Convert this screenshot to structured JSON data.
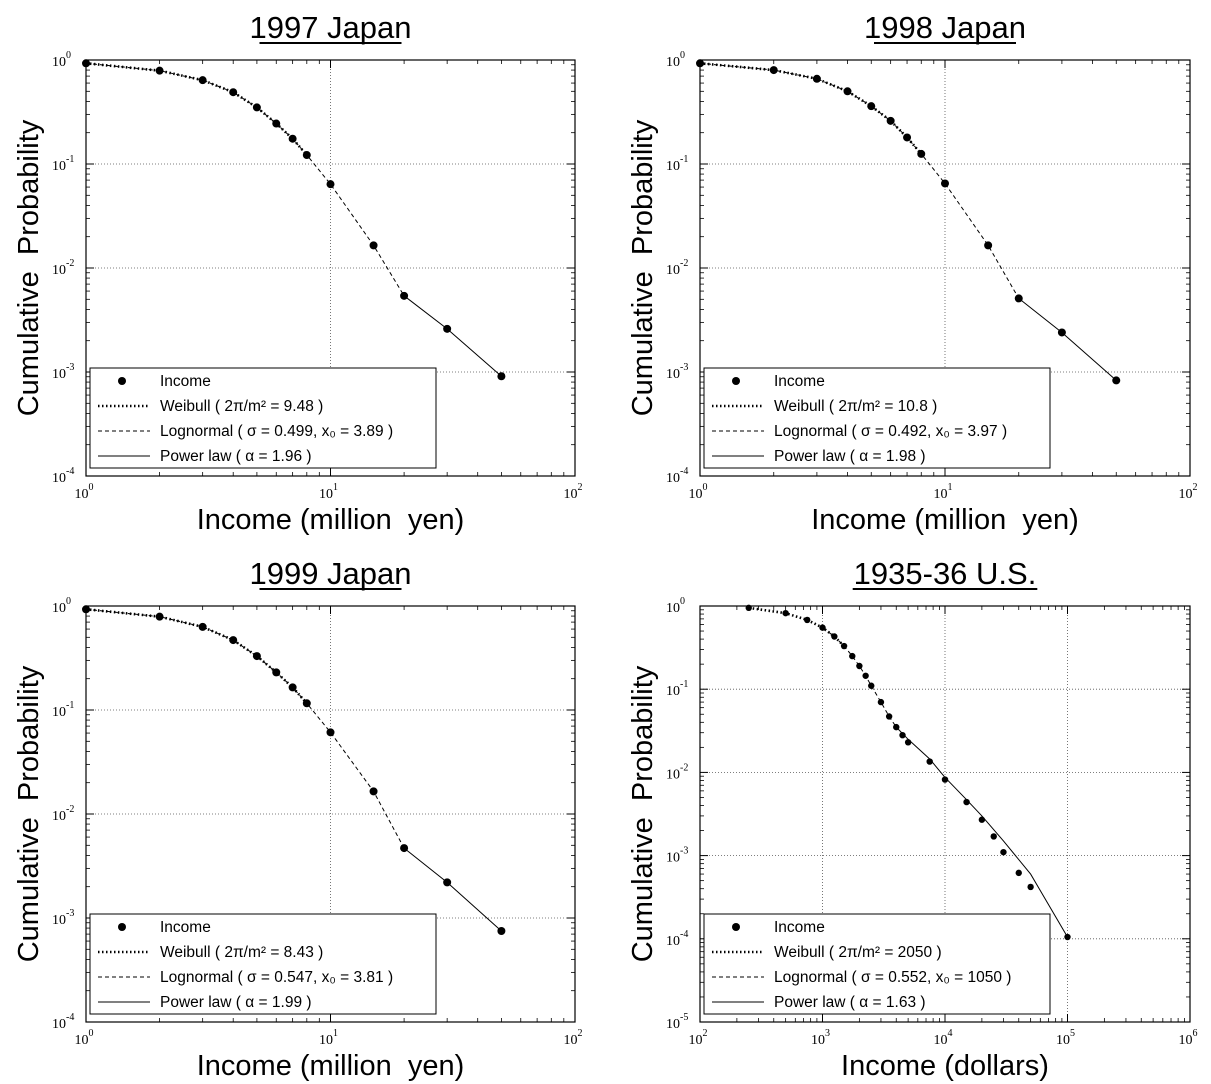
{
  "chart_data": [
    {
      "type": "line",
      "title": "1997 Japan",
      "xlabel": "Income (million  yen)",
      "ylabel": "Cumulative  Probability",
      "xscale": "log",
      "yscale": "log",
      "xlim": [
        1,
        100
      ],
      "ylim": [
        0.0001,
        1
      ],
      "xtick_exps": [
        0,
        1,
        2
      ],
      "ytick_exps": [
        -4,
        -3,
        -2,
        -1,
        0
      ],
      "grid": true,
      "legend_position": "bottom-left",
      "series": [
        {
          "name": "Income",
          "kind": "points",
          "color": "#000000",
          "x": [
            1,
            2,
            3,
            4,
            5,
            6,
            7,
            8,
            10,
            15,
            20,
            30,
            50
          ],
          "y": [
            0.93,
            0.79,
            0.64,
            0.49,
            0.35,
            0.245,
            0.175,
            0.122,
            0.064,
            0.0165,
            0.0054,
            0.0026,
            0.00091
          ]
        },
        {
          "name": "Weibull",
          "param_text": "( 2π/m² = 9.48 )",
          "kind": "dotted",
          "color": "#000000",
          "x": [
            1,
            2,
            3,
            4,
            5,
            6,
            7,
            8
          ],
          "y": [
            0.93,
            0.79,
            0.64,
            0.49,
            0.35,
            0.245,
            0.175,
            0.122
          ]
        },
        {
          "name": "Lognormal",
          "param_text": "( σ = 0.499, x₀ = 3.89 )",
          "kind": "dashed",
          "color": "#000000",
          "x": [
            1,
            2,
            3,
            4,
            5,
            6,
            7,
            8,
            10,
            15,
            20
          ],
          "y": [
            0.93,
            0.79,
            0.64,
            0.49,
            0.35,
            0.245,
            0.175,
            0.122,
            0.064,
            0.0165,
            0.0054
          ]
        },
        {
          "name": "Power law",
          "param_text": "( α = 1.96 )",
          "kind": "solid",
          "color": "#000000",
          "x": [
            20,
            30,
            50
          ],
          "y": [
            0.0054,
            0.0026,
            0.00091
          ]
        }
      ]
    },
    {
      "type": "line",
      "title": "1998 Japan",
      "xlabel": "Income (million  yen)",
      "ylabel": "Cumulative  Probability",
      "xscale": "log",
      "yscale": "log",
      "xlim": [
        1,
        100
      ],
      "ylim": [
        0.0001,
        1
      ],
      "xtick_exps": [
        0,
        1,
        2
      ],
      "ytick_exps": [
        -4,
        -3,
        -2,
        -1,
        0
      ],
      "grid": true,
      "legend_position": "bottom-left",
      "series": [
        {
          "name": "Income",
          "kind": "points",
          "color": "#000000",
          "x": [
            1,
            2,
            3,
            4,
            5,
            6,
            7,
            8,
            10,
            15,
            20,
            30,
            50
          ],
          "y": [
            0.93,
            0.8,
            0.66,
            0.5,
            0.36,
            0.26,
            0.18,
            0.125,
            0.065,
            0.0165,
            0.0051,
            0.0024,
            0.00083
          ]
        },
        {
          "name": "Weibull",
          "param_text": "( 2π/m² = 10.8 )",
          "kind": "dotted",
          "color": "#000000",
          "x": [
            1,
            2,
            3,
            4,
            5,
            6,
            7,
            8
          ],
          "y": [
            0.93,
            0.8,
            0.66,
            0.5,
            0.36,
            0.26,
            0.18,
            0.125
          ]
        },
        {
          "name": "Lognormal",
          "param_text": "( σ = 0.492, x₀ = 3.97 )",
          "kind": "dashed",
          "color": "#000000",
          "x": [
            1,
            2,
            3,
            4,
            5,
            6,
            7,
            8,
            10,
            15,
            20
          ],
          "y": [
            0.93,
            0.8,
            0.66,
            0.5,
            0.36,
            0.26,
            0.18,
            0.125,
            0.065,
            0.0165,
            0.0051
          ]
        },
        {
          "name": "Power law",
          "param_text": "( α = 1.98 )",
          "kind": "solid",
          "color": "#000000",
          "x": [
            20,
            30,
            50
          ],
          "y": [
            0.0051,
            0.0024,
            0.00083
          ]
        }
      ]
    },
    {
      "type": "line",
      "title": "1999 Japan",
      "xlabel": "Income (million  yen)",
      "ylabel": "Cumulative  Probability",
      "xscale": "log",
      "yscale": "log",
      "xlim": [
        1,
        100
      ],
      "ylim": [
        0.0001,
        1
      ],
      "xtick_exps": [
        0,
        1,
        2
      ],
      "ytick_exps": [
        -4,
        -3,
        -2,
        -1,
        0
      ],
      "grid": true,
      "legend_position": "bottom-left",
      "series": [
        {
          "name": "Income",
          "kind": "points",
          "color": "#000000",
          "x": [
            1,
            2,
            3,
            4,
            5,
            6,
            7,
            8,
            10,
            15,
            20,
            30,
            50
          ],
          "y": [
            0.93,
            0.79,
            0.63,
            0.47,
            0.33,
            0.23,
            0.165,
            0.116,
            0.061,
            0.0165,
            0.0047,
            0.0022,
            0.00075
          ]
        },
        {
          "name": "Weibull",
          "param_text": "( 2π/m² = 8.43 )",
          "kind": "dotted",
          "color": "#000000",
          "x": [
            1,
            2,
            3,
            4,
            5,
            6,
            7,
            8
          ],
          "y": [
            0.93,
            0.79,
            0.63,
            0.47,
            0.33,
            0.23,
            0.165,
            0.116
          ]
        },
        {
          "name": "Lognormal",
          "param_text": "( σ = 0.547, x₀ = 3.81 )",
          "kind": "dashed",
          "color": "#000000",
          "x": [
            1,
            2,
            3,
            4,
            5,
            6,
            7,
            8,
            10,
            15,
            20
          ],
          "y": [
            0.93,
            0.79,
            0.63,
            0.47,
            0.33,
            0.23,
            0.165,
            0.116,
            0.061,
            0.0165,
            0.0047
          ]
        },
        {
          "name": "Power law",
          "param_text": "( α = 1.99 )",
          "kind": "solid",
          "color": "#000000",
          "x": [
            20,
            30,
            50
          ],
          "y": [
            0.0047,
            0.0022,
            0.00075
          ]
        }
      ]
    },
    {
      "type": "line",
      "title": "1935-36  U.S.",
      "xlabel": "Income (dollars)",
      "ylabel": "Cumulative  Probability",
      "xscale": "log",
      "yscale": "log",
      "xlim": [
        100,
        1000000
      ],
      "ylim": [
        1e-05,
        1
      ],
      "xtick_exps": [
        2,
        3,
        4,
        5,
        6
      ],
      "ytick_exps": [
        -5,
        -4,
        -3,
        -2,
        -1,
        0
      ],
      "grid": true,
      "legend_position": "bottom-left",
      "series": [
        {
          "name": "Income",
          "kind": "points",
          "color": "#000000",
          "x": [
            250,
            500,
            750,
            1000,
            1250,
            1500,
            1750,
            2000,
            2250,
            2500,
            3000,
            3500,
            4000,
            4500,
            5000,
            7500,
            10000,
            15000,
            20000,
            25000,
            30000,
            40000,
            50000,
            100000
          ],
          "y": [
            0.95,
            0.82,
            0.68,
            0.55,
            0.43,
            0.33,
            0.25,
            0.19,
            0.145,
            0.11,
            0.07,
            0.047,
            0.035,
            0.028,
            0.023,
            0.0135,
            0.0082,
            0.0044,
            0.0027,
            0.0017,
            0.0011,
            0.00062,
            0.00042,
            0.000105
          ]
        },
        {
          "name": "Weibull",
          "param_text": "( 2π/m² = 2050 )",
          "kind": "dotted",
          "color": "#000000",
          "x": [
            250,
            500,
            750,
            1000,
            1250,
            1500
          ],
          "y": [
            0.95,
            0.82,
            0.68,
            0.55,
            0.43,
            0.33
          ]
        },
        {
          "name": "Lognormal",
          "param_text": "( σ = 0.552, x₀ = 1050 )",
          "kind": "dashed",
          "color": "#000000",
          "x": [
            1000,
            1250,
            1500,
            1750,
            2000,
            2250,
            2500,
            3000,
            3500,
            4000
          ],
          "y": [
            0.55,
            0.43,
            0.33,
            0.25,
            0.19,
            0.145,
            0.11,
            0.07,
            0.047,
            0.035
          ]
        },
        {
          "name": "Power law",
          "param_text": "( α = 1.63 )",
          "kind": "solid",
          "color": "#000000",
          "x": [
            4000,
            5000,
            7500,
            10000,
            15000,
            20000,
            30000,
            50000,
            100000
          ],
          "y": [
            0.035,
            0.025,
            0.0145,
            0.0087,
            0.0047,
            0.003,
            0.0015,
            0.0006,
            0.000105
          ]
        }
      ]
    }
  ]
}
